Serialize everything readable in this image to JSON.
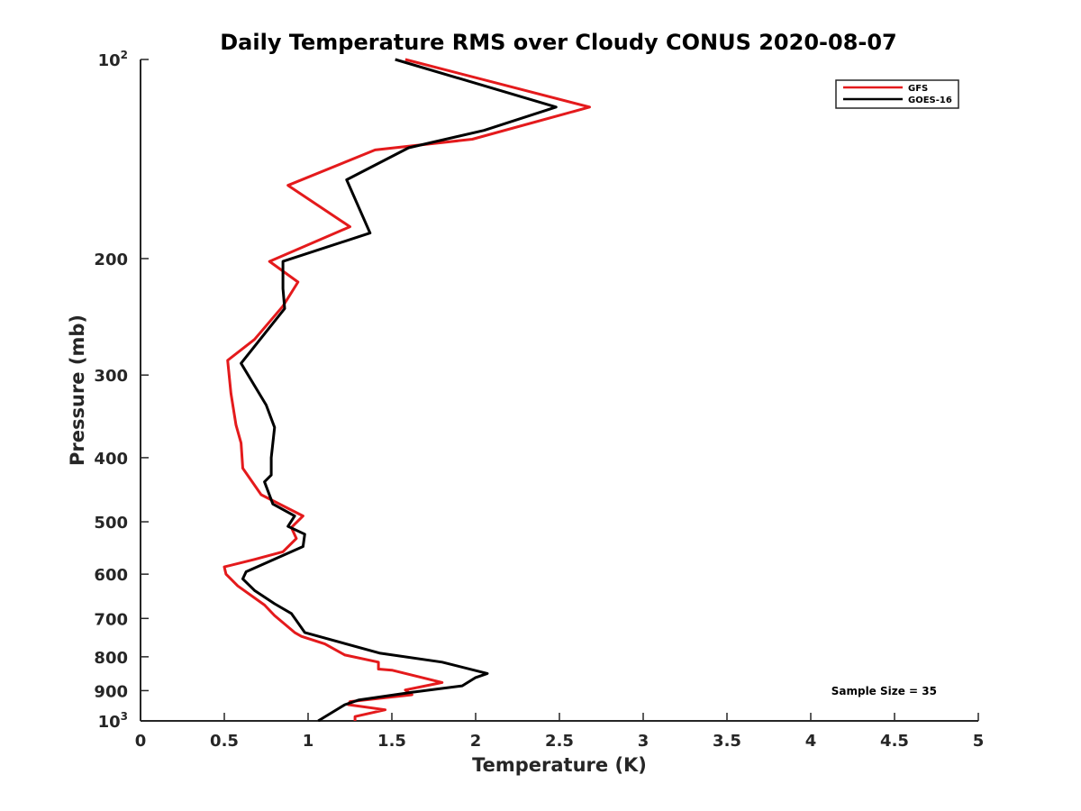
{
  "chart_data": {
    "type": "line",
    "title": "Daily Temperature RMS over Cloudy CONUS 2020-08-07",
    "xlabel": "Temperature (K)",
    "ylabel": "Pressure (mb)",
    "xlim": [
      0,
      5
    ],
    "ylim": [
      100,
      1000
    ],
    "yscale": "log",
    "y_reversed": true,
    "grid": false,
    "legend_position": "top-right",
    "x_ticks": [
      "0",
      "0.5",
      "1",
      "1.5",
      "2",
      "2.5",
      "3",
      "3.5",
      "4",
      "4.5",
      "5"
    ],
    "y_ticks": [
      {
        "value": 100,
        "label": "10",
        "sup": "2"
      },
      {
        "value": 200,
        "label": "200",
        "sup": ""
      },
      {
        "value": 300,
        "label": "300",
        "sup": ""
      },
      {
        "value": 400,
        "label": "400",
        "sup": ""
      },
      {
        "value": 500,
        "label": "500",
        "sup": ""
      },
      {
        "value": 600,
        "label": "600",
        "sup": ""
      },
      {
        "value": 700,
        "label": "700",
        "sup": ""
      },
      {
        "value": 800,
        "label": "800",
        "sup": ""
      },
      {
        "value": 900,
        "label": "900",
        "sup": ""
      },
      {
        "value": 1000,
        "label": "10",
        "sup": "3"
      }
    ],
    "annotation": "Sample Size = 35",
    "series": [
      {
        "name": "GFS",
        "color": "#e41a1c",
        "points": [
          [
            1.58,
            100
          ],
          [
            2.68,
            118
          ],
          [
            1.98,
            132
          ],
          [
            1.4,
            137
          ],
          [
            0.88,
            155
          ],
          [
            1.25,
            179
          ],
          [
            0.77,
            202
          ],
          [
            0.94,
            217
          ],
          [
            0.85,
            236
          ],
          [
            0.68,
            265
          ],
          [
            0.52,
            285
          ],
          [
            0.54,
            320
          ],
          [
            0.57,
            357
          ],
          [
            0.6,
            380
          ],
          [
            0.61,
            415
          ],
          [
            0.72,
            455
          ],
          [
            0.97,
            490
          ],
          [
            0.9,
            510
          ],
          [
            0.93,
            530
          ],
          [
            0.85,
            555
          ],
          [
            0.68,
            570
          ],
          [
            0.5,
            585
          ],
          [
            0.51,
            600
          ],
          [
            0.58,
            625
          ],
          [
            0.74,
            668
          ],
          [
            0.8,
            693
          ],
          [
            0.92,
            735
          ],
          [
            0.96,
            745
          ],
          [
            1.1,
            765
          ],
          [
            1.22,
            795
          ],
          [
            1.42,
            815
          ],
          [
            1.42,
            835
          ],
          [
            1.5,
            838
          ],
          [
            1.8,
            875
          ],
          [
            1.58,
            898
          ],
          [
            1.62,
            913
          ],
          [
            1.25,
            935
          ],
          [
            1.24,
            945
          ],
          [
            1.46,
            962
          ],
          [
            1.28,
            985
          ],
          [
            1.28,
            1000
          ]
        ]
      },
      {
        "name": "GOES-16",
        "color": "#000000",
        "points": [
          [
            1.52,
            100
          ],
          [
            2.48,
            118
          ],
          [
            2.05,
            128
          ],
          [
            1.6,
            136
          ],
          [
            1.23,
            152
          ],
          [
            1.37,
            183
          ],
          [
            0.85,
            202
          ],
          [
            0.85,
            222
          ],
          [
            0.86,
            238
          ],
          [
            0.6,
            288
          ],
          [
            0.75,
            333
          ],
          [
            0.8,
            360
          ],
          [
            0.78,
            400
          ],
          [
            0.78,
            425
          ],
          [
            0.74,
            435
          ],
          [
            0.79,
            470
          ],
          [
            0.92,
            490
          ],
          [
            0.88,
            508
          ],
          [
            0.98,
            522
          ],
          [
            0.97,
            545
          ],
          [
            0.63,
            595
          ],
          [
            0.61,
            610
          ],
          [
            0.68,
            635
          ],
          [
            0.8,
            665
          ],
          [
            0.9,
            688
          ],
          [
            0.93,
            705
          ],
          [
            0.98,
            735
          ],
          [
            1.43,
            790
          ],
          [
            1.8,
            815
          ],
          [
            2.07,
            848
          ],
          [
            2.0,
            860
          ],
          [
            1.92,
            885
          ],
          [
            1.62,
            905
          ],
          [
            1.3,
            930
          ],
          [
            1.22,
            945
          ],
          [
            1.06,
            1000
          ]
        ]
      }
    ]
  }
}
